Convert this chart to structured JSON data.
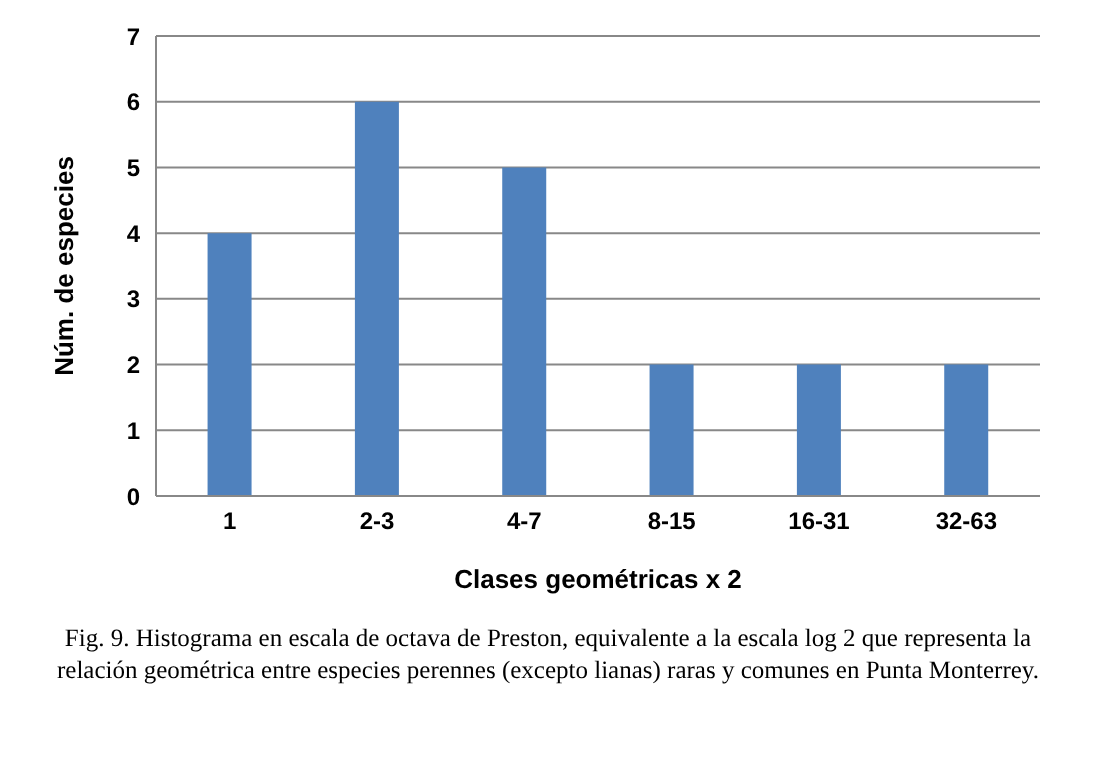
{
  "chart_data": {
    "type": "bar",
    "xlabel": "Clases geométricas x 2",
    "ylabel": "Núm. de especies",
    "categories": [
      "1",
      "2-3",
      "4-7",
      "8-15",
      "16-31",
      "32-63"
    ],
    "values": [
      4,
      6,
      5,
      2,
      2,
      2
    ],
    "color": "#4f81bd",
    "ylim": [
      0,
      7
    ],
    "yticks": [
      0,
      1,
      2,
      3,
      4,
      5,
      6,
      7
    ],
    "grid": "y",
    "annotations": [
      "Fig. 9. Histograma en escala de octava de Preston, equivalente a la escala log 2 que representa la relación geométrica entre especies perennes (excepto lianas) raras y comunes en Punta Monterrey."
    ]
  }
}
